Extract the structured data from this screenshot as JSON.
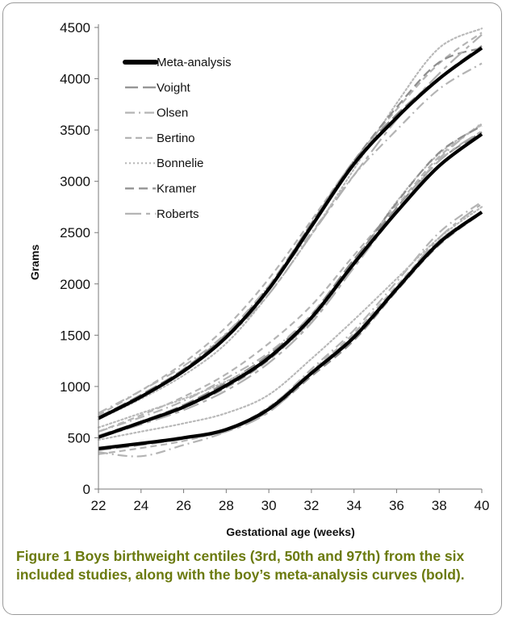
{
  "caption": {
    "label": "Figure 1",
    "text": " Boys birthweight centiles (3rd, 50th and 97th) from the six included studies, along with the boy’s meta-analysis curves (bold)."
  },
  "colors": {
    "meta": "#000000",
    "voight": "#8a8a8a",
    "olsen": "#b4b4b4",
    "bertino": "#b4b4b4",
    "bonnelie": "#b9b9b9",
    "kramer": "#8e8e8e",
    "roberts": "#b0b0b0",
    "caption": "#6b7a0e"
  },
  "chart_data": {
    "type": "line",
    "title": "",
    "xlabel": "Gestational age (weeks)",
    "ylabel": "Grams",
    "xlim": [
      22,
      40
    ],
    "ylim": [
      0,
      4500
    ],
    "xticks": [
      22,
      24,
      26,
      28,
      30,
      32,
      34,
      36,
      38,
      40
    ],
    "yticks": [
      0,
      500,
      1000,
      1500,
      2000,
      2500,
      3000,
      3500,
      4000,
      4500
    ],
    "grid": false,
    "legend_position": "top-left",
    "x": [
      22,
      24,
      26,
      28,
      30,
      32,
      34,
      36,
      38,
      40
    ],
    "series": [
      {
        "name": "Meta-analysis",
        "style": "solid-bold",
        "centiles": {
          "p3": [
            395,
            445,
            500,
            580,
            780,
            1130,
            1480,
            1950,
            2400,
            2700
          ],
          "p50": [
            505,
            650,
            800,
            1010,
            1280,
            1670,
            2200,
            2700,
            3150,
            3460
          ],
          "p97": [
            690,
            900,
            1150,
            1480,
            1950,
            2560,
            3170,
            3620,
            4000,
            4300
          ]
        }
      },
      {
        "name": "Voight",
        "style": "long-dash",
        "centiles": {
          "p3": [
            380,
            430,
            490,
            570,
            770,
            1140,
            1500,
            1960,
            2420,
            2700
          ],
          "p50": [
            520,
            660,
            820,
            1040,
            1310,
            1700,
            2240,
            2740,
            3200,
            3480
          ],
          "p97": [
            700,
            920,
            1170,
            1510,
            1980,
            2590,
            3200,
            3650,
            4010,
            4320
          ]
        }
      },
      {
        "name": "Olsen",
        "style": "dash-dot",
        "centiles": {
          "p3": [
            360,
            320,
            430,
            560,
            790,
            1170,
            1550,
            2020,
            2500,
            2800
          ],
          "p50": [
            560,
            700,
            860,
            1080,
            1330,
            1700,
            2210,
            2720,
            3220,
            3570
          ],
          "p97": [
            740,
            960,
            1200,
            1520,
            1980,
            2500,
            3060,
            3500,
            3900,
            4150
          ]
        }
      },
      {
        "name": "Bertino",
        "style": "dash",
        "centiles": {
          "p3": [
            340,
            400,
            470,
            580,
            800,
            1150,
            1520,
            1980,
            2420,
            2700
          ],
          "p50": [
            560,
            720,
            900,
            1120,
            1420,
            1790,
            2280,
            2760,
            3240,
            3560
          ],
          "p97": [
            720,
            960,
            1230,
            1580,
            2050,
            2620,
            3200,
            3700,
            4150,
            4450
          ]
        }
      },
      {
        "name": "Bonnelie",
        "style": "dotted",
        "centiles": {
          "p3": [
            480,
            560,
            640,
            740,
            920,
            1270,
            1650,
            2050,
            2450,
            2750
          ],
          "p50": [
            600,
            740,
            880,
            1050,
            1280,
            1640,
            2200,
            2800,
            3270,
            3550
          ],
          "p97": [
            680,
            880,
            1110,
            1420,
            1900,
            2480,
            3120,
            3760,
            4300,
            4490
          ]
        }
      },
      {
        "name": "Kramer",
        "style": "medium-dash",
        "centiles": {
          "p3": [
            400,
            450,
            500,
            570,
            760,
            1100,
            1450,
            1930,
            2380,
            2690
          ],
          "p50": [
            500,
            640,
            790,
            990,
            1260,
            1660,
            2220,
            2790,
            3280,
            3540
          ],
          "p97": [
            680,
            900,
            1160,
            1500,
            1960,
            2590,
            3200,
            3720,
            4160,
            4300
          ]
        }
      },
      {
        "name": "Roberts",
        "style": "long-dash-light",
        "centiles": {
          "p3": [
            400,
            440,
            490,
            560,
            750,
            1120,
            1480,
            1960,
            2450,
            2780
          ],
          "p50": [
            500,
            630,
            770,
            960,
            1230,
            1620,
            2160,
            2700,
            3200,
            3490
          ],
          "p97": [
            690,
            900,
            1140,
            1470,
            1900,
            2480,
            3060,
            3600,
            4050,
            4430
          ]
        }
      }
    ]
  }
}
